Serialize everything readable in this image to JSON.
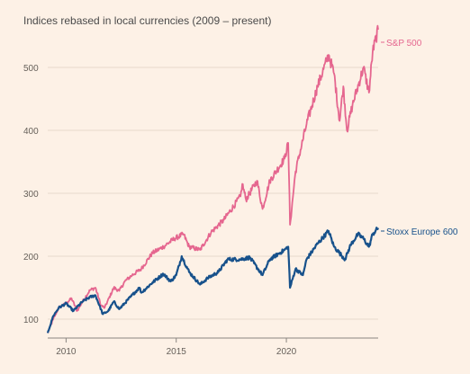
{
  "chart_data": {
    "type": "line",
    "title": "Indices rebased in local currencies (2009 – present)",
    "xlabel": "",
    "ylabel": "",
    "x_range": [
      "2009-03-01",
      "2024-03-01"
    ],
    "ylim": [
      70,
      550
    ],
    "y_ticks": [
      100,
      200,
      300,
      400,
      500
    ],
    "x_ticks": [
      {
        "label": "2010",
        "date": "2010-01-01"
      },
      {
        "label": "2015",
        "date": "2015-01-01"
      },
      {
        "label": "2020",
        "date": "2020-01-01"
      }
    ],
    "grid": {
      "horizontal": true,
      "vertical": false
    },
    "legend_placement": "direct labels at line ends, right",
    "series": [
      {
        "name": "S&P 500",
        "color": "#e5668f",
        "points": [
          [
            "2009-03",
            78
          ],
          [
            "2009-06",
            100
          ],
          [
            "2009-09",
            118
          ],
          [
            "2010-01",
            125
          ],
          [
            "2010-04",
            133
          ],
          [
            "2010-07",
            113
          ],
          [
            "2010-10",
            128
          ],
          [
            "2011-02",
            146
          ],
          [
            "2011-05",
            150
          ],
          [
            "2011-08",
            122
          ],
          [
            "2011-10",
            118
          ],
          [
            "2012-03",
            150
          ],
          [
            "2012-06",
            145
          ],
          [
            "2012-09",
            160
          ],
          [
            "2013-01",
            170
          ],
          [
            "2013-06",
            180
          ],
          [
            "2013-12",
            205
          ],
          [
            "2014-06",
            215
          ],
          [
            "2014-12",
            228
          ],
          [
            "2015-05",
            235
          ],
          [
            "2015-08",
            215
          ],
          [
            "2016-02",
            210
          ],
          [
            "2016-08",
            238
          ],
          [
            "2017-03",
            258
          ],
          [
            "2017-12",
            295
          ],
          [
            "2018-01",
            315
          ],
          [
            "2018-03",
            290
          ],
          [
            "2018-09",
            320
          ],
          [
            "2018-12",
            275
          ],
          [
            "2019-04",
            320
          ],
          [
            "2019-12",
            355
          ],
          [
            "2020-02",
            380
          ],
          [
            "2020-03",
            250
          ],
          [
            "2020-06",
            335
          ],
          [
            "2020-12",
            410
          ],
          [
            "2021-06",
            470
          ],
          [
            "2021-12",
            520
          ],
          [
            "2022-03",
            490
          ],
          [
            "2022-06",
            415
          ],
          [
            "2022-08",
            470
          ],
          [
            "2022-10",
            400
          ],
          [
            "2023-01",
            440
          ],
          [
            "2023-07",
            500
          ],
          [
            "2023-10",
            460
          ],
          [
            "2023-12",
            525
          ],
          [
            "2024-03",
            560
          ]
        ]
      },
      {
        "name": "Stoxx Europe 600",
        "color": "#17518b",
        "points": [
          [
            "2009-03",
            78
          ],
          [
            "2009-06",
            105
          ],
          [
            "2009-09",
            118
          ],
          [
            "2010-01",
            125
          ],
          [
            "2010-05",
            113
          ],
          [
            "2010-10",
            128
          ],
          [
            "2011-02",
            135
          ],
          [
            "2011-05",
            138
          ],
          [
            "2011-09",
            108
          ],
          [
            "2011-12",
            113
          ],
          [
            "2012-03",
            128
          ],
          [
            "2012-06",
            116
          ],
          [
            "2012-12",
            135
          ],
          [
            "2013-05",
            150
          ],
          [
            "2013-06",
            142
          ],
          [
            "2013-12",
            158
          ],
          [
            "2014-06",
            172
          ],
          [
            "2014-10",
            160
          ],
          [
            "2015-01",
            170
          ],
          [
            "2015-04",
            200
          ],
          [
            "2015-08",
            175
          ],
          [
            "2016-02",
            155
          ],
          [
            "2016-06",
            165
          ],
          [
            "2016-12",
            175
          ],
          [
            "2017-05",
            195
          ],
          [
            "2017-12",
            195
          ],
          [
            "2018-05",
            198
          ],
          [
            "2018-12",
            170
          ],
          [
            "2019-04",
            195
          ],
          [
            "2019-12",
            210
          ],
          [
            "2020-02",
            215
          ],
          [
            "2020-03",
            150
          ],
          [
            "2020-06",
            180
          ],
          [
            "2020-10",
            170
          ],
          [
            "2020-12",
            195
          ],
          [
            "2021-06",
            220
          ],
          [
            "2021-12",
            240
          ],
          [
            "2022-03",
            215
          ],
          [
            "2022-06",
            205
          ],
          [
            "2022-09",
            195
          ],
          [
            "2022-12",
            218
          ],
          [
            "2023-04",
            235
          ],
          [
            "2023-07",
            228
          ],
          [
            "2023-10",
            215
          ],
          [
            "2023-12",
            235
          ],
          [
            "2024-03",
            245
          ]
        ]
      }
    ]
  }
}
